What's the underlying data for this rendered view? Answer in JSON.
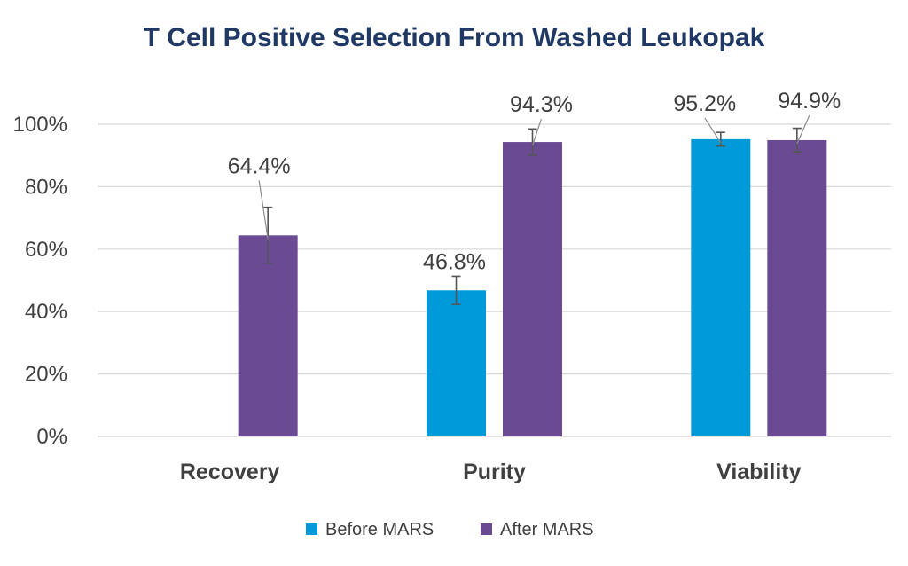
{
  "chart_data": {
    "type": "bar",
    "title": "T Cell Positive Selection From Washed Leukopak",
    "categories": [
      "Recovery",
      "Purity",
      "Viability"
    ],
    "ylim": [
      0,
      100
    ],
    "yticks": [
      "0%",
      "20%",
      "40%",
      "60%",
      "80%",
      "100%"
    ],
    "grid": true,
    "legend_position": "bottom",
    "series": [
      {
        "name": "Before MARS",
        "color": "#009ad9",
        "values": [
          null,
          46.8,
          95.2
        ],
        "errors": [
          null,
          4.5,
          2.2
        ],
        "labels": [
          "",
          "46.8%",
          "95.2%"
        ]
      },
      {
        "name": "After MARS",
        "color": "#6a4a92",
        "values": [
          64.4,
          94.3,
          94.9
        ],
        "errors": [
          9.0,
          4.2,
          3.8
        ],
        "labels": [
          "64.4%",
          "94.3%",
          "94.9%"
        ]
      }
    ]
  }
}
